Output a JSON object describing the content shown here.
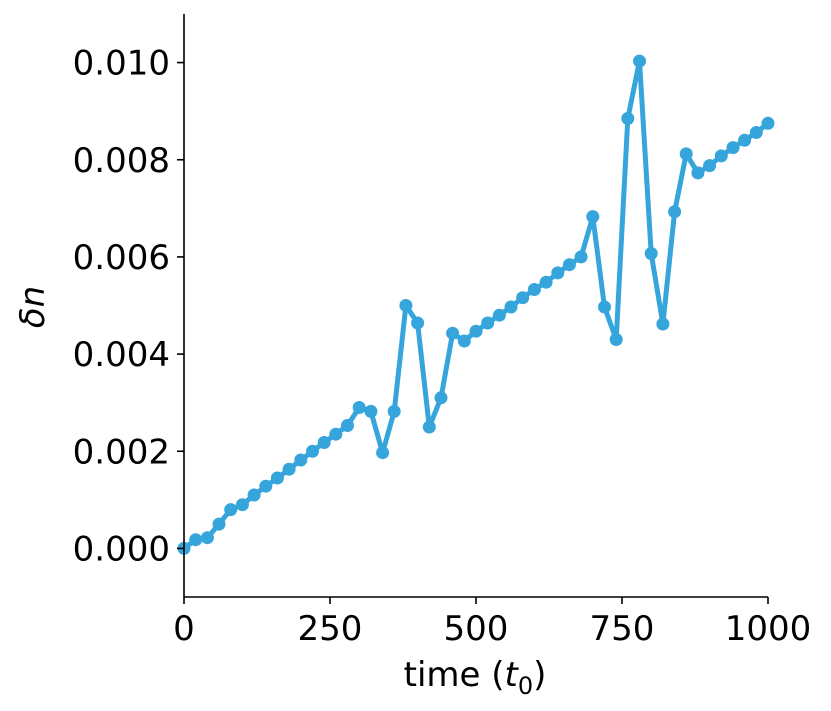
{
  "chart_data": {
    "type": "line",
    "xlabel_main": "time (",
    "xlabel_var": "t",
    "xlabel_sub": "0",
    "xlabel_close": ")",
    "ylabel": "δn",
    "xlim": [
      0,
      1000
    ],
    "ylim": [
      -0.001,
      0.011
    ],
    "xticks": [
      0,
      250,
      500,
      750,
      1000
    ],
    "xtick_labels": [
      "0",
      "250",
      "500",
      "750",
      "1000"
    ],
    "yticks": [
      0.0,
      0.002,
      0.004,
      0.006,
      0.008,
      0.01
    ],
    "ytick_labels": [
      "0.000",
      "0.002",
      "0.004",
      "0.006",
      "0.008",
      "0.010"
    ],
    "grid": false,
    "color": "#35a5dc",
    "series": [
      {
        "x": [
          0,
          20,
          40,
          60,
          80,
          100,
          120,
          140,
          160,
          180,
          200,
          220,
          240,
          260,
          280,
          300,
          320,
          340,
          360,
          380,
          400,
          420,
          440,
          460,
          480,
          500,
          520,
          540,
          560,
          580,
          600,
          620,
          640,
          660,
          680,
          700,
          720,
          740,
          760,
          780,
          800,
          820,
          840,
          860,
          880,
          900,
          920,
          940,
          960,
          980,
          1000
        ],
        "y": [
          0.0,
          0.00018,
          0.00022,
          0.0005,
          0.0008,
          0.0009,
          0.0011,
          0.00128,
          0.00145,
          0.00163,
          0.00182,
          0.002,
          0.00218,
          0.00235,
          0.00253,
          0.0029,
          0.00282,
          0.00197,
          0.00282,
          0.005,
          0.00464,
          0.0025,
          0.0031,
          0.00443,
          0.00427,
          0.00447,
          0.00464,
          0.0048,
          0.00497,
          0.00516,
          0.00533,
          0.00548,
          0.00567,
          0.00584,
          0.006,
          0.00683,
          0.00497,
          0.0043,
          0.00885,
          0.01003,
          0.00607,
          0.00462,
          0.00693,
          0.00812,
          0.00773,
          0.00788,
          0.00808,
          0.00825,
          0.0084,
          0.00856,
          0.00875
        ]
      }
    ]
  }
}
